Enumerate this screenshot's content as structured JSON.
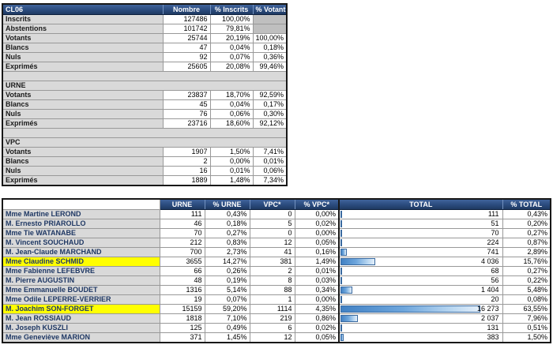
{
  "summary_table": {
    "header": [
      "CL06",
      "Nombre",
      "% Inscrits",
      "% Votants"
    ],
    "rows": [
      {
        "type": "data",
        "label": "Inscrits",
        "nombre": "127486",
        "pct_inscrits": "100,00%",
        "pct_votants": "",
        "disabled": true
      },
      {
        "type": "data",
        "label": "Abstentions",
        "nombre": "101742",
        "pct_inscrits": "79,81%",
        "pct_votants": "",
        "disabled": true
      },
      {
        "type": "data",
        "label": "Votants",
        "nombre": "25744",
        "pct_inscrits": "20,19%",
        "pct_votants": "100,00%"
      },
      {
        "type": "data",
        "label": "Blancs",
        "nombre": "47",
        "pct_inscrits": "0,04%",
        "pct_votants": "0,18%"
      },
      {
        "type": "data",
        "label": "Nuls",
        "nombre": "92",
        "pct_inscrits": "0,07%",
        "pct_votants": "0,36%"
      },
      {
        "type": "data",
        "label": "Exprimés",
        "nombre": "25605",
        "pct_inscrits": "20,08%",
        "pct_votants": "99,46%"
      },
      {
        "type": "separator"
      },
      {
        "type": "section",
        "label": "URNE"
      },
      {
        "type": "data",
        "label": "Votants",
        "nombre": "23837",
        "pct_inscrits": "18,70%",
        "pct_votants": "92,59%"
      },
      {
        "type": "data",
        "label": "Blancs",
        "nombre": "45",
        "pct_inscrits": "0,04%",
        "pct_votants": "0,17%"
      },
      {
        "type": "data",
        "label": "Nuls",
        "nombre": "76",
        "pct_inscrits": "0,06%",
        "pct_votants": "0,30%"
      },
      {
        "type": "data",
        "label": "Exprimés",
        "nombre": "23716",
        "pct_inscrits": "18,60%",
        "pct_votants": "92,12%"
      },
      {
        "type": "separator"
      },
      {
        "type": "section",
        "label": "VPC"
      },
      {
        "type": "data",
        "label": "Votants",
        "nombre": "1907",
        "pct_inscrits": "1,50%",
        "pct_votants": "7,41%"
      },
      {
        "type": "data",
        "label": "Blancs",
        "nombre": "2",
        "pct_inscrits": "0,00%",
        "pct_votants": "0,01%"
      },
      {
        "type": "data",
        "label": "Nuls",
        "nombre": "16",
        "pct_inscrits": "0,01%",
        "pct_votants": "0,06%"
      },
      {
        "type": "data",
        "label": "Exprimés",
        "nombre": "1889",
        "pct_inscrits": "1,48%",
        "pct_votants": "7,34%"
      }
    ]
  },
  "results_table": {
    "header": [
      "",
      "URNE",
      "% URNE",
      "VPC*",
      "% VPC*",
      "TOTAL",
      "% TOTAL"
    ],
    "bar_max": 16273,
    "bar_full_pct": 86,
    "rows": [
      {
        "name": "Mme Martine LEROND",
        "urne": "111",
        "pct_urne": "0,43%",
        "vpc": "0",
        "pct_vpc": "0,00%",
        "total": "111",
        "total_value": 111,
        "pct_total": "0,43%",
        "highlight": false
      },
      {
        "name": "M. Ernesto PRIAROLLO",
        "urne": "46",
        "pct_urne": "0,18%",
        "vpc": "5",
        "pct_vpc": "0,02%",
        "total": "51",
        "total_value": 51,
        "pct_total": "0,20%",
        "highlight": false
      },
      {
        "name": "Mme Tie WATANABE",
        "urne": "70",
        "pct_urne": "0,27%",
        "vpc": "0",
        "pct_vpc": "0,00%",
        "total": "70",
        "total_value": 70,
        "pct_total": "0,27%",
        "highlight": false
      },
      {
        "name": "M. Vincent SOUCHAUD",
        "urne": "212",
        "pct_urne": "0,83%",
        "vpc": "12",
        "pct_vpc": "0,05%",
        "total": "224",
        "total_value": 224,
        "pct_total": "0,87%",
        "highlight": false
      },
      {
        "name": "M. Jean-Claude MARCHAND",
        "urne": "700",
        "pct_urne": "2,73%",
        "vpc": "41",
        "pct_vpc": "0,16%",
        "total": "741",
        "total_value": 741,
        "pct_total": "2,89%",
        "highlight": false
      },
      {
        "name": "Mme Claudine SCHMID",
        "urne": "3655",
        "pct_urne": "14,27%",
        "vpc": "381",
        "pct_vpc": "1,49%",
        "total": "4 036",
        "total_value": 4036,
        "pct_total": "15,76%",
        "highlight": true
      },
      {
        "name": "Mme Fabienne LEFEBVRE",
        "urne": "66",
        "pct_urne": "0,26%",
        "vpc": "2",
        "pct_vpc": "0,01%",
        "total": "68",
        "total_value": 68,
        "pct_total": "0,27%",
        "highlight": false
      },
      {
        "name": "M. Pierre AUGUSTIN",
        "urne": "48",
        "pct_urne": "0,19%",
        "vpc": "8",
        "pct_vpc": "0,03%",
        "total": "56",
        "total_value": 56,
        "pct_total": "0,22%",
        "highlight": false
      },
      {
        "name": "Mme Emmanuelle BOUDET",
        "urne": "1316",
        "pct_urne": "5,14%",
        "vpc": "88",
        "pct_vpc": "0,34%",
        "total": "1 404",
        "total_value": 1404,
        "pct_total": "5,48%",
        "highlight": false
      },
      {
        "name": "Mme Odile LEPERRE-VERRIER",
        "urne": "19",
        "pct_urne": "0,07%",
        "vpc": "1",
        "pct_vpc": "0,00%",
        "total": "20",
        "total_value": 20,
        "pct_total": "0,08%",
        "highlight": false
      },
      {
        "name": "M. Joachim SON-FORGET",
        "urne": "15159",
        "pct_urne": "59,20%",
        "vpc": "1114",
        "pct_vpc": "4,35%",
        "total": "16 273",
        "total_value": 16273,
        "pct_total": "63,55%",
        "highlight": true
      },
      {
        "name": "M. Jean ROSSIAUD",
        "urne": "1818",
        "pct_urne": "7,10%",
        "vpc": "219",
        "pct_vpc": "0,86%",
        "total": "2 037",
        "total_value": 2037,
        "pct_total": "7,96%",
        "highlight": false
      },
      {
        "name": "M. Joseph KUSZLI",
        "urne": "125",
        "pct_urne": "0,49%",
        "vpc": "6",
        "pct_vpc": "0,02%",
        "total": "131",
        "total_value": 131,
        "pct_total": "0,51%",
        "highlight": false
      },
      {
        "name": "Mme Geneviève MARION",
        "urne": "371",
        "pct_urne": "1,45%",
        "vpc": "12",
        "pct_vpc": "0,05%",
        "total": "383",
        "total_value": 383,
        "pct_total": "1,50%",
        "highlight": false
      }
    ]
  },
  "colors": {
    "header_blue": "#2c4d80",
    "label_gray": "#d9d9d9",
    "disabled_gray": "#bfbfbf",
    "highlight_yellow": "#ffff00",
    "name_text": "#1f3864",
    "bar_blue": "#4181c4"
  }
}
